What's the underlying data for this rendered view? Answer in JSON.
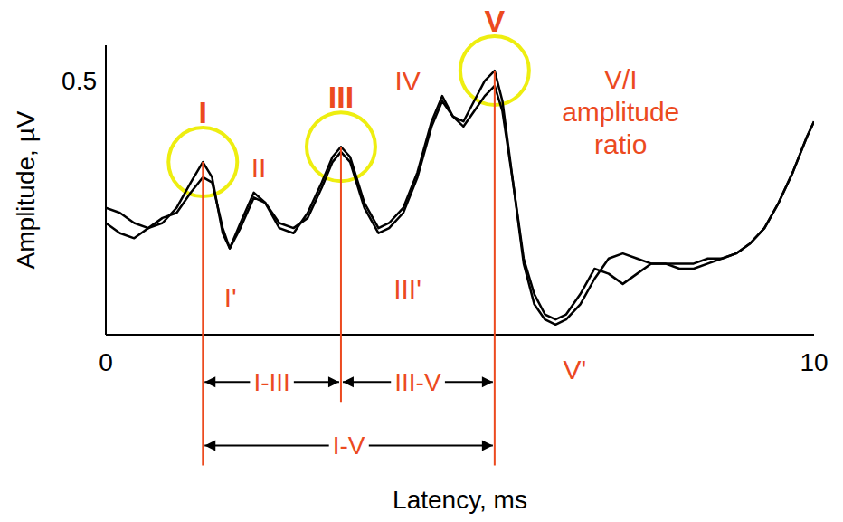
{
  "chart_data": {
    "type": "line",
    "x_label": "Latency, ms",
    "y_label": "Amplitude, µV",
    "xlim": [
      0,
      10
    ],
    "xticks": [
      0,
      10
    ],
    "ylim": [
      0,
      0.57
    ],
    "yticks": [
      0.5
    ],
    "grid": false,
    "x": [
      0,
      0.2,
      0.4,
      0.6,
      0.8,
      1.0,
      1.2,
      1.37,
      1.5,
      1.65,
      1.75,
      1.9,
      2.09,
      2.25,
      2.45,
      2.65,
      2.85,
      3.05,
      3.2,
      3.32,
      3.45,
      3.65,
      3.85,
      4.0,
      4.2,
      4.4,
      4.6,
      4.75,
      4.9,
      5.05,
      5.2,
      5.35,
      5.49,
      5.6,
      5.75,
      5.9,
      6.05,
      6.2,
      6.35,
      6.5,
      6.7,
      6.9,
      7.1,
      7.3,
      7.5,
      7.7,
      7.9,
      8.1,
      8.3,
      8.5,
      8.7,
      8.9,
      9.1,
      9.3,
      9.5,
      9.7,
      9.9,
      10.0
    ],
    "series": [
      {
        "color": "#000000",
        "values": [
          0.25,
          0.24,
          0.22,
          0.21,
          0.22,
          0.25,
          0.3,
          0.34,
          0.31,
          0.2,
          0.17,
          0.22,
          0.28,
          0.26,
          0.21,
          0.2,
          0.24,
          0.3,
          0.35,
          0.37,
          0.35,
          0.26,
          0.21,
          0.22,
          0.25,
          0.32,
          0.42,
          0.47,
          0.43,
          0.42,
          0.46,
          0.5,
          0.52,
          0.46,
          0.3,
          0.14,
          0.06,
          0.03,
          0.02,
          0.03,
          0.06,
          0.11,
          0.15,
          0.16,
          0.15,
          0.14,
          0.14,
          0.13,
          0.13,
          0.14,
          0.15,
          0.16,
          0.18,
          0.21,
          0.26,
          0.32,
          0.39,
          0.42
        ]
      },
      {
        "color": "#000000",
        "values": [
          0.22,
          0.2,
          0.19,
          0.21,
          0.23,
          0.24,
          0.28,
          0.31,
          0.3,
          0.21,
          0.17,
          0.21,
          0.27,
          0.26,
          0.22,
          0.21,
          0.23,
          0.29,
          0.34,
          0.36,
          0.34,
          0.25,
          0.2,
          0.21,
          0.24,
          0.31,
          0.41,
          0.46,
          0.43,
          0.41,
          0.44,
          0.47,
          0.49,
          0.44,
          0.3,
          0.15,
          0.08,
          0.04,
          0.03,
          0.04,
          0.08,
          0.13,
          0.12,
          0.1,
          0.12,
          0.14,
          0.14,
          0.14,
          0.14,
          0.15,
          0.15,
          0.16,
          0.18,
          0.21,
          0.26,
          0.32,
          0.39,
          0.42
        ]
      }
    ],
    "circled_peaks": [
      {
        "label": "I",
        "x": 1.37,
        "y": 0.34
      },
      {
        "label": "III",
        "x": 3.32,
        "y": 0.37
      },
      {
        "label": "V",
        "x": 5.49,
        "y": 0.52
      }
    ],
    "annotations": [
      {
        "text": "II",
        "x": 2.16,
        "y": 0.33
      },
      {
        "text": "IV",
        "x": 4.26,
        "y": 0.5
      },
      {
        "text": "I'",
        "x": 1.76,
        "y": 0.075
      },
      {
        "text": "III'",
        "x": 4.26,
        "y": 0.09
      },
      {
        "text": "V'",
        "x": 6.62,
        "y": -0.067
      },
      {
        "text": "V/I amplitude ratio",
        "x": 7.27,
        "y": 0.44
      }
    ],
    "intervals": [
      {
        "label": "I-III",
        "from": 1.37,
        "to": 3.32,
        "y": -0.093
      },
      {
        "label": "III-V",
        "from": 3.32,
        "to": 5.49,
        "y": -0.093
      },
      {
        "label": "I-V",
        "from": 1.37,
        "to": 5.49,
        "y": -0.218
      }
    ]
  }
}
